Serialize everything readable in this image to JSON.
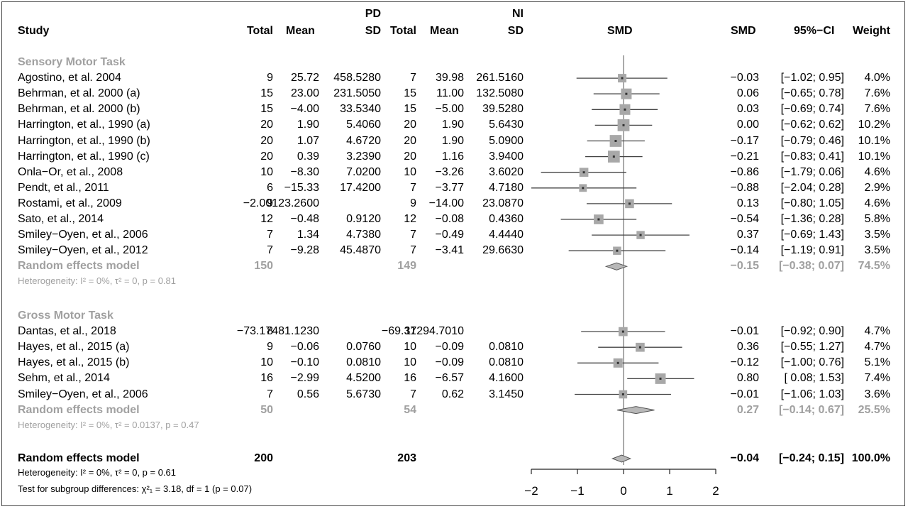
{
  "chart_data": {
    "type": "forest",
    "groups": {
      "pd": "PD",
      "ni": "NI"
    },
    "headers": {
      "study": "Study",
      "total": "Total",
      "mean": "Mean",
      "sd": "SD",
      "plot": "SMD",
      "smd": "SMD",
      "ci": "95%−CI",
      "weight": "Weight"
    },
    "xaxis": {
      "min": -2,
      "max": 2,
      "ticks": [
        "−2",
        "−1",
        "0",
        "1",
        "2"
      ]
    },
    "subgroups": [
      {
        "title": "Sensory Motor Task",
        "studies": [
          {
            "study": "Agostino, et al. 2004",
            "pd_total": "9",
            "pd_mean": "25.72",
            "pd_sd": "458.5280",
            "ni_total": "7",
            "ni_mean": "39.98",
            "ni_sd": "261.5160",
            "smd_text": "−0.03",
            "ci_text": "[−1.02; 0.95]",
            "weight_text": "4.0%",
            "smd": -0.03,
            "lo": -1.02,
            "hi": 0.95,
            "weight": 4.0
          },
          {
            "study": "Behrman, et al. 2000 (a)",
            "pd_total": "15",
            "pd_mean": "23.00",
            "pd_sd": "231.5050",
            "ni_total": "15",
            "ni_mean": "11.00",
            "ni_sd": "132.5080",
            "smd_text": "0.06",
            "ci_text": "[−0.65; 0.78]",
            "weight_text": "7.6%",
            "smd": 0.06,
            "lo": -0.65,
            "hi": 0.78,
            "weight": 7.6
          },
          {
            "study": "Behrman, et al. 2000 (b)",
            "pd_total": "15",
            "pd_mean": "−4.00",
            "pd_sd": "33.5340",
            "ni_total": "15",
            "ni_mean": "−5.00",
            "ni_sd": "39.5280",
            "smd_text": "0.03",
            "ci_text": "[−0.69; 0.74]",
            "weight_text": "7.6%",
            "smd": 0.03,
            "lo": -0.69,
            "hi": 0.74,
            "weight": 7.6
          },
          {
            "study": "Harrington, et al., 1990 (a)",
            "pd_total": "20",
            "pd_mean": "1.90",
            "pd_sd": "5.4060",
            "ni_total": "20",
            "ni_mean": "1.90",
            "ni_sd": "5.6430",
            "smd_text": "0.00",
            "ci_text": "[−0.62; 0.62]",
            "weight_text": "10.2%",
            "smd": 0.0,
            "lo": -0.62,
            "hi": 0.62,
            "weight": 10.2
          },
          {
            "study": "Harrington, et al., 1990 (b)",
            "pd_total": "20",
            "pd_mean": "1.07",
            "pd_sd": "4.6720",
            "ni_total": "20",
            "ni_mean": "1.90",
            "ni_sd": "5.0900",
            "smd_text": "−0.17",
            "ci_text": "[−0.79; 0.46]",
            "weight_text": "10.1%",
            "smd": -0.17,
            "lo": -0.79,
            "hi": 0.46,
            "weight": 10.1
          },
          {
            "study": "Harrington, et al., 1990 (c)",
            "pd_total": "20",
            "pd_mean": "0.39",
            "pd_sd": "3.2390",
            "ni_total": "20",
            "ni_mean": "1.16",
            "ni_sd": "3.9400",
            "smd_text": "−0.21",
            "ci_text": "[−0.83; 0.41]",
            "weight_text": "10.1%",
            "smd": -0.21,
            "lo": -0.83,
            "hi": 0.41,
            "weight": 10.1
          },
          {
            "study": "Onla−Or, et al., 2008",
            "pd_total": "10",
            "pd_mean": "−8.30",
            "pd_sd": "7.0200",
            "ni_total": "10",
            "ni_mean": "−3.26",
            "ni_sd": "3.6020",
            "smd_text": "−0.86",
            "ci_text": "[−1.79; 0.06]",
            "weight_text": "4.6%",
            "smd": -0.86,
            "lo": -1.79,
            "hi": 0.06,
            "weight": 4.6
          },
          {
            "study": "Pendt, et al., 2011",
            "pd_total": "6",
            "pd_mean": "−15.33",
            "pd_sd": "17.4200",
            "ni_total": "7",
            "ni_mean": "−3.77",
            "ni_sd": "4.7180",
            "smd_text": "−0.88",
            "ci_text": "[−2.04; 0.28]",
            "weight_text": "2.9%",
            "smd": -0.88,
            "lo": -2.04,
            "hi": 0.28,
            "weight": 2.9
          },
          {
            "study": "Rostami, et al., 2009",
            "pd_total": "9",
            "pd_mean": "−2.00123.2600",
            "pd_sd": "",
            "ni_total": "9",
            "ni_mean": "−14.00",
            "ni_sd": "23.0870",
            "smd_text": "0.13",
            "ci_text": "[−0.80; 1.05]",
            "weight_text": "4.6%",
            "smd": 0.13,
            "lo": -0.8,
            "hi": 1.05,
            "weight": 4.6
          },
          {
            "study": "Sato, et al., 2014",
            "pd_total": "12",
            "pd_mean": "−0.48",
            "pd_sd": "0.9120",
            "ni_total": "12",
            "ni_mean": "−0.08",
            "ni_sd": "0.4360",
            "smd_text": "−0.54",
            "ci_text": "[−1.36; 0.28]",
            "weight_text": "5.8%",
            "smd": -0.54,
            "lo": -1.36,
            "hi": 0.28,
            "weight": 5.8
          },
          {
            "study": "Smiley−Oyen, et al., 2006",
            "pd_total": "7",
            "pd_mean": "1.34",
            "pd_sd": "4.7380",
            "ni_total": "7",
            "ni_mean": "−0.49",
            "ni_sd": "4.4440",
            "smd_text": "0.37",
            "ci_text": "[−0.69; 1.43]",
            "weight_text": "3.5%",
            "smd": 0.37,
            "lo": -0.69,
            "hi": 1.43,
            "weight": 3.5
          },
          {
            "study": "Smiley−Oyen, et al., 2012",
            "pd_total": "7",
            "pd_mean": "−9.28",
            "pd_sd": "45.4870",
            "ni_total": "7",
            "ni_mean": "−3.41",
            "ni_sd": "29.6630",
            "smd_text": "−0.14",
            "ci_text": "[−1.19; 0.91]",
            "weight_text": "3.5%",
            "smd": -0.14,
            "lo": -1.19,
            "hi": 0.91,
            "weight": 3.5
          }
        ],
        "model": {
          "label": "Random effects model",
          "pd_total": "150",
          "ni_total": "149",
          "smd_text": "−0.15",
          "ci_text": "[−0.38; 0.07]",
          "weight_text": "74.5%",
          "smd": -0.15,
          "lo": -0.38,
          "hi": 0.07
        },
        "heterogeneity": "Heterogeneity: I² = 0%, τ² = 0, p = 0.81"
      },
      {
        "title": "Gross Motor Task",
        "studies": [
          {
            "study": "Dantas, et al., 2018",
            "pd_total": "8",
            "pd_mean": "−73.17481.1230",
            "pd_sd": "",
            "ni_total": "11",
            "ni_mean": "−69.37294.7010",
            "ni_sd": "",
            "smd_text": "−0.01",
            "ci_text": "[−0.92; 0.90]",
            "weight_text": "4.7%",
            "smd": -0.01,
            "lo": -0.92,
            "hi": 0.9,
            "weight": 4.7
          },
          {
            "study": "Hayes, et al., 2015 (a)",
            "pd_total": "9",
            "pd_mean": "−0.06",
            "pd_sd": "0.0760",
            "ni_total": "10",
            "ni_mean": "−0.09",
            "ni_sd": "0.0810",
            "smd_text": "0.36",
            "ci_text": "[−0.55; 1.27]",
            "weight_text": "4.7%",
            "smd": 0.36,
            "lo": -0.55,
            "hi": 1.27,
            "weight": 4.7
          },
          {
            "study": "Hayes, et al., 2015 (b)",
            "pd_total": "10",
            "pd_mean": "−0.10",
            "pd_sd": "0.0810",
            "ni_total": "10",
            "ni_mean": "−0.09",
            "ni_sd": "0.0810",
            "smd_text": "−0.12",
            "ci_text": "[−1.00; 0.76]",
            "weight_text": "5.1%",
            "smd": -0.12,
            "lo": -1.0,
            "hi": 0.76,
            "weight": 5.1
          },
          {
            "study": "Sehm, et al., 2014",
            "pd_total": "16",
            "pd_mean": "−2.99",
            "pd_sd": "4.5200",
            "ni_total": "16",
            "ni_mean": "−6.57",
            "ni_sd": "4.1600",
            "smd_text": "0.80",
            "ci_text": "[ 0.08; 1.53]",
            "weight_text": "7.4%",
            "smd": 0.8,
            "lo": 0.08,
            "hi": 1.53,
            "weight": 7.4
          },
          {
            "study": "Smiley−Oyen, et al., 2006",
            "pd_total": "7",
            "pd_mean": "0.56",
            "pd_sd": "5.6730",
            "ni_total": "7",
            "ni_mean": "0.62",
            "ni_sd": "3.1450",
            "smd_text": "−0.01",
            "ci_text": "[−1.06; 1.03]",
            "weight_text": "3.6%",
            "smd": -0.01,
            "lo": -1.06,
            "hi": 1.03,
            "weight": 3.6
          }
        ],
        "model": {
          "label": "Random effects model",
          "pd_total": "50",
          "ni_total": "54",
          "smd_text": "0.27",
          "ci_text": "[−0.14; 0.67]",
          "weight_text": "25.5%",
          "smd": 0.27,
          "lo": -0.14,
          "hi": 0.67
        },
        "heterogeneity": "Heterogeneity: I² = 0%, τ² = 0.0137, p = 0.47"
      }
    ],
    "overall": {
      "label": "Random effects model",
      "pd_total": "200",
      "ni_total": "203",
      "smd_text": "−0.04",
      "ci_text": "[−0.24; 0.15]",
      "weight_text": "100.0%",
      "smd": -0.04,
      "lo": -0.24,
      "hi": 0.15,
      "heterogeneity": "Heterogeneity: I² = 0%, τ² = 0, p = 0.61",
      "subgroup_test": "Test for subgroup differences: χ²₁ = 3.18, df = 1 (p = 0.07)"
    },
    "colors": {
      "subgroup": "#a0a0a0",
      "box": "#a8a8a8",
      "diamond": "#b8b8b8",
      "line": "#444444"
    }
  }
}
